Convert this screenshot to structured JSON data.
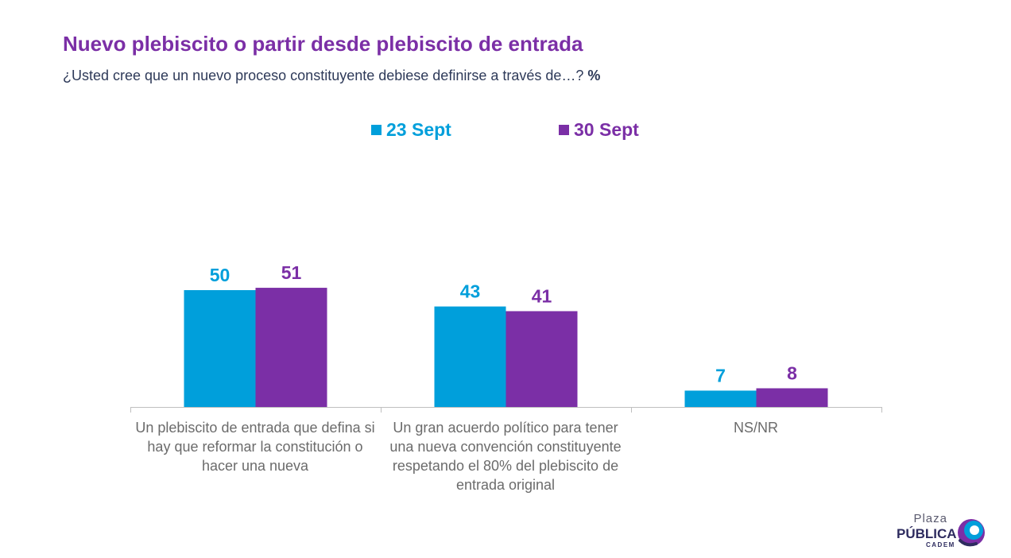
{
  "colors": {
    "title": "#7b2fa6",
    "series1": "#009fdb",
    "series2": "#7b2fa6",
    "axis": "#bfbfbf"
  },
  "header": {
    "title": "Nuevo plebiscito o partir desde plebiscito de entrada",
    "subtitle": "¿Usted cree que un nuevo proceso constituyente debiese definirse a través de…?",
    "unit": "%"
  },
  "chart_data": {
    "type": "bar",
    "title": "Nuevo plebiscito o partir desde plebiscito de entrada",
    "subtitle": "¿Usted cree que un nuevo proceso constituyente debiese definirse a través de…? %",
    "categories": [
      "Un plebiscito de entrada que defina si hay que reformar la constitución o hacer una nueva",
      "Un gran acuerdo político para tener una nueva convención constituyente respetando el 80% del plebiscito de entrada original",
      "NS/NR"
    ],
    "series": [
      {
        "name": "23 Sept",
        "values": [
          50,
          43,
          7
        ]
      },
      {
        "name": "30 Sept",
        "values": [
          51,
          41,
          8
        ]
      }
    ],
    "ylim": [
      0,
      100
    ],
    "grid": false,
    "legend": "top-center",
    "data_labels": true
  },
  "logo": {
    "line1": "Plaza",
    "line2": "PÚBLICA",
    "line3": "CADEM"
  }
}
